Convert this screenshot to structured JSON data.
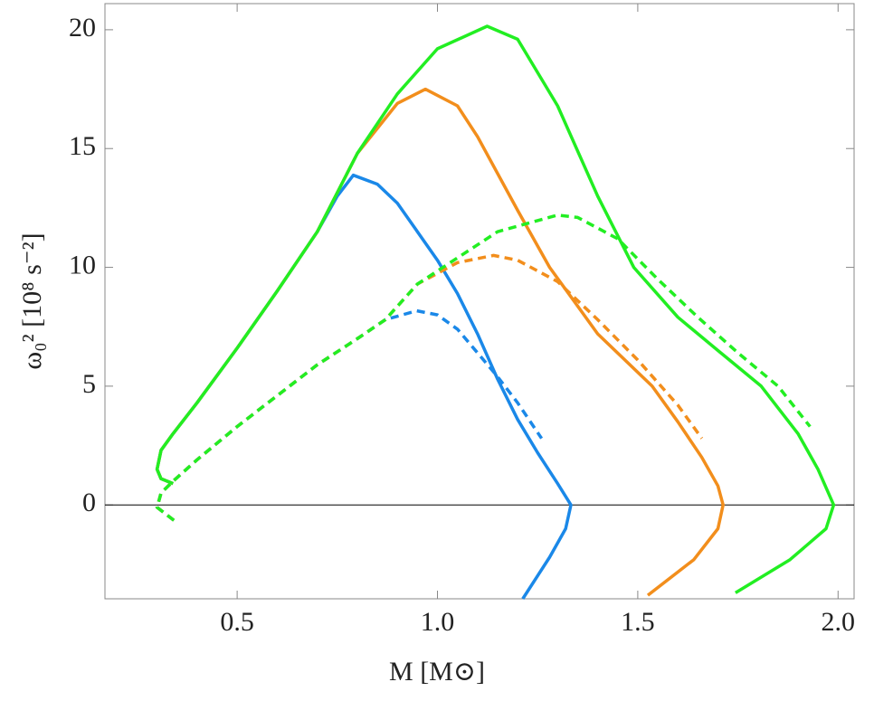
{
  "chart_data": {
    "type": "line",
    "x_label": "M [M⊙]",
    "y_label": "ω₀² [10⁸ s⁻²]",
    "xlim": [
      0.17,
      2.04
    ],
    "ylim": [
      -3.95,
      21.1
    ],
    "xticks": [
      0.5,
      {
        "value": 1,
        "label": "1.0"
      },
      1.5,
      {
        "value": 2,
        "label": "2.0"
      }
    ],
    "yticks": [
      0,
      5,
      10,
      15,
      20
    ],
    "zero_line": true,
    "series": [
      {
        "color": "#1a88e8",
        "dashed": false,
        "x": [
          0.34,
          0.31,
          0.3,
          0.31,
          0.34,
          0.4,
          0.5,
          0.6,
          0.7,
          0.75,
          0.79,
          0.85,
          0.9,
          0.95,
          1.0,
          1.05,
          1.1,
          1.15,
          1.2,
          1.25,
          1.3,
          1.333,
          1.32,
          1.28,
          1.213
        ],
        "values": [
          0.9,
          1.1,
          1.5,
          2.3,
          3.0,
          4.3,
          6.6,
          9.0,
          11.5,
          13.0,
          13.88,
          13.5,
          12.7,
          11.5,
          10.3,
          8.9,
          7.2,
          5.3,
          3.6,
          2.2,
          0.9,
          0,
          -1,
          -2.2,
          -3.95
        ]
      },
      {
        "color": "#f28e1c",
        "dashed": false,
        "x": [
          0.34,
          0.31,
          0.3,
          0.31,
          0.34,
          0.4,
          0.5,
          0.6,
          0.7,
          0.8,
          0.9,
          0.97,
          1.05,
          1.1,
          1.2,
          1.28,
          1.4,
          1.536,
          1.6,
          1.66,
          1.7,
          1.713,
          1.7,
          1.64,
          1.525
        ],
        "values": [
          0.9,
          1.1,
          1.5,
          2.3,
          3.0,
          4.3,
          6.6,
          9.0,
          11.5,
          14.8,
          16.9,
          17.5,
          16.8,
          15.5,
          12.4,
          10,
          7.2,
          5,
          3.5,
          2,
          0.8,
          0,
          -1,
          -2.3,
          -3.8
        ]
      },
      {
        "color": "#22ee22",
        "dashed": false,
        "x": [
          0.34,
          0.31,
          0.3,
          0.31,
          0.34,
          0.4,
          0.5,
          0.6,
          0.7,
          0.8,
          0.9,
          1.0,
          1.124,
          1.2,
          1.3,
          1.4,
          1.49,
          1.6,
          1.7,
          1.808,
          1.9,
          1.95,
          1.989,
          1.97,
          1.88,
          1.744
        ],
        "values": [
          0.9,
          1.1,
          1.5,
          2.3,
          3.0,
          4.3,
          6.6,
          9.0,
          11.5,
          14.8,
          17.3,
          19.2,
          20.15,
          19.6,
          16.8,
          13,
          10,
          7.9,
          6.5,
          5,
          3,
          1.5,
          0,
          -1,
          -2.3,
          -3.7
        ]
      },
      {
        "color": "#1a88e8",
        "dashed": true,
        "x": [
          0.342,
          0.3,
          0.31,
          0.34,
          0.4,
          0.5,
          0.6,
          0.7,
          0.8,
          0.87,
          0.948,
          1.0,
          1.05,
          1.1,
          1.15,
          1.2,
          1.26
        ],
        "values": [
          -0.65,
          -0.1,
          0.5,
          1.0,
          1.9,
          3.3,
          4.6,
          5.9,
          7.0,
          7.8,
          8.17,
          8.0,
          7.4,
          6.4,
          5.4,
          4.3,
          2.8
        ]
      },
      {
        "color": "#f28e1c",
        "dashed": true,
        "x": [
          0.342,
          0.3,
          0.31,
          0.34,
          0.4,
          0.5,
          0.6,
          0.7,
          0.8,
          0.87,
          0.95,
          1.05,
          1.14,
          1.2,
          1.3,
          1.4,
          1.5,
          1.6,
          1.66
        ],
        "values": [
          -0.65,
          -0.1,
          0.5,
          1.0,
          1.9,
          3.3,
          4.6,
          5.9,
          7.0,
          7.8,
          9.3,
          10.2,
          10.5,
          10.3,
          9.4,
          7.8,
          6.1,
          4.2,
          2.8
        ]
      },
      {
        "color": "#22ee22",
        "dashed": true,
        "x": [
          0.342,
          0.3,
          0.31,
          0.34,
          0.4,
          0.5,
          0.6,
          0.7,
          0.8,
          0.87,
          0.95,
          1.05,
          1.15,
          1.3,
          1.35,
          1.45,
          1.55,
          1.65,
          1.75,
          1.85,
          1.93
        ],
        "values": [
          -0.65,
          -0.1,
          0.5,
          1.0,
          1.9,
          3.3,
          4.6,
          5.9,
          7.0,
          7.8,
          9.3,
          10.4,
          11.5,
          12.2,
          12.1,
          11.2,
          9.5,
          7.9,
          6.4,
          5.0,
          3.3
        ]
      }
    ]
  }
}
